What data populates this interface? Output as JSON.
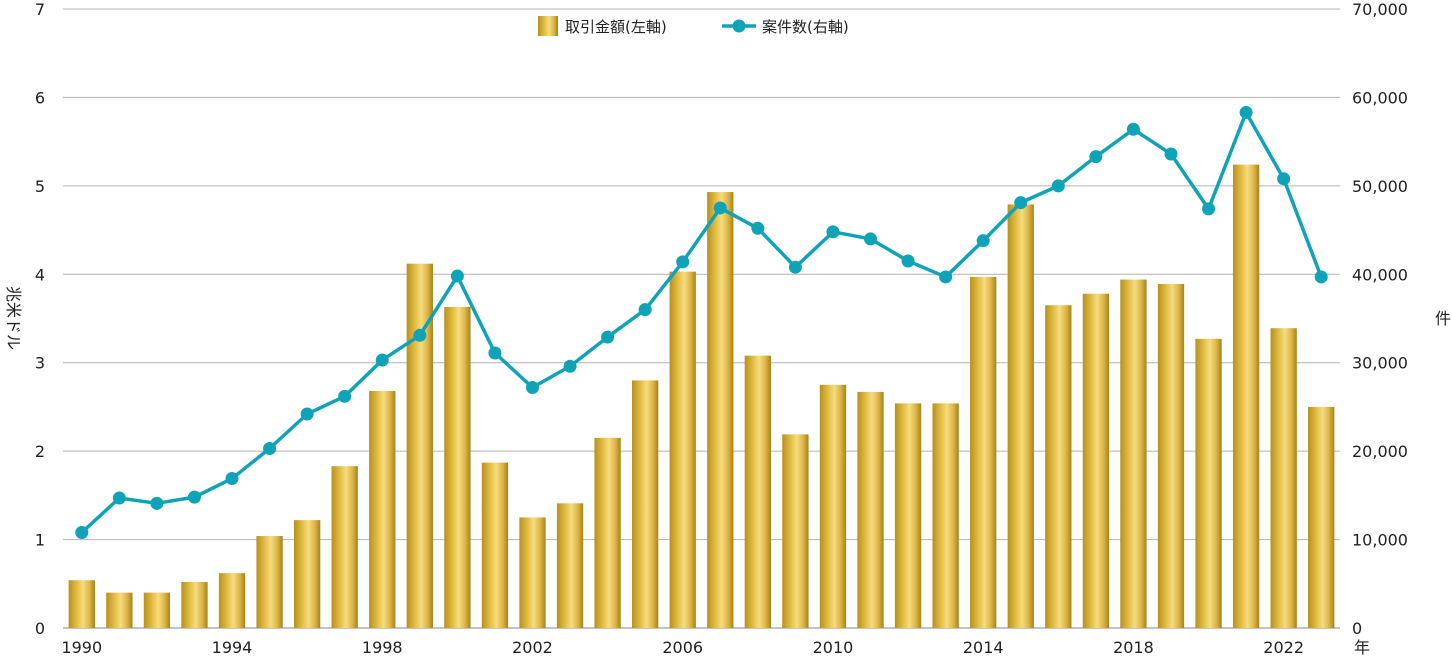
{
  "chart_data": {
    "type": "bar",
    "x": [
      1990,
      1991,
      1992,
      1993,
      1994,
      1995,
      1996,
      1997,
      1998,
      1999,
      2000,
      2001,
      2002,
      2003,
      2004,
      2005,
      2006,
      2007,
      2008,
      2009,
      2010,
      2011,
      2012,
      2013,
      2014,
      2015,
      2016,
      2017,
      2018,
      2019,
      2020,
      2021,
      2022,
      2023
    ],
    "x_tick_labels": [
      "1990",
      "1994",
      "1998",
      "2002",
      "2006",
      "2010",
      "2014",
      "2018",
      "2022"
    ],
    "x_tick_values": [
      1990,
      1994,
      1998,
      2002,
      2006,
      2010,
      2014,
      2018,
      2022
    ],
    "x_unit": "年",
    "ylabel_left": "兆米ドル",
    "ylabel_right": "件",
    "ylim_left": [
      0,
      7
    ],
    "ylim_right": [
      0,
      70000
    ],
    "y_left_ticks": [
      "0",
      "1",
      "2",
      "3",
      "4",
      "5",
      "6",
      "7"
    ],
    "y_right_ticks": [
      "0",
      "10,000",
      "20,000",
      "30,000",
      "40,000",
      "50,000",
      "60,000",
      "70,000"
    ],
    "grid": true,
    "legend_position": "top-center",
    "series": [
      {
        "name": "取引金額(左軸)",
        "type": "bar",
        "axis": "left",
        "color": "#d8b13c",
        "values": [
          0.54,
          0.4,
          0.4,
          0.52,
          0.62,
          1.04,
          1.22,
          1.83,
          2.68,
          4.12,
          3.63,
          1.87,
          1.25,
          1.41,
          2.15,
          2.8,
          4.03,
          4.93,
          3.08,
          2.19,
          2.75,
          2.67,
          2.54,
          2.54,
          3.97,
          4.79,
          3.65,
          3.78,
          3.94,
          3.89,
          3.27,
          5.24,
          3.39,
          2.5
        ]
      },
      {
        "name": "案件数(右軸)",
        "type": "line",
        "axis": "right",
        "color": "#0fa3b8",
        "values": [
          10800,
          14700,
          14100,
          14800,
          16900,
          20300,
          24200,
          26200,
          30300,
          33100,
          39800,
          31100,
          27200,
          29600,
          32900,
          36000,
          41400,
          47500,
          45200,
          40800,
          44800,
          44000,
          41500,
          39700,
          43800,
          48100,
          50000,
          53300,
          56400,
          53600,
          47400,
          58300,
          50800,
          39700
        ]
      }
    ]
  }
}
